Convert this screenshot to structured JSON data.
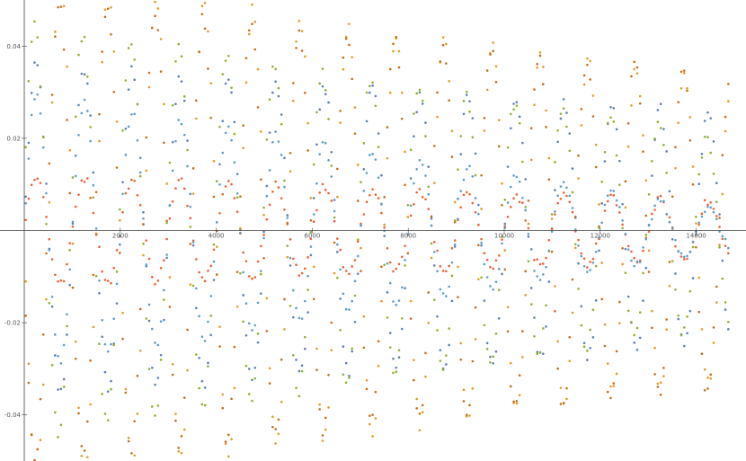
{
  "chart_data": {
    "type": "scatter",
    "title": "",
    "xlabel": "",
    "ylabel": "",
    "xlim": [
      0,
      14700
    ],
    "ylim": [
      -0.05,
      0.05
    ],
    "x_ticks": [
      {
        "value": 2000,
        "label": "2000"
      },
      {
        "value": 4000,
        "label": "4000"
      },
      {
        "value": 6000,
        "label": "6000"
      },
      {
        "value": 8000,
        "label": "8000"
      },
      {
        "value": 10000,
        "label": "10000"
      },
      {
        "value": 12000,
        "label": "12000"
      },
      {
        "value": 14000,
        "label": "14000"
      }
    ],
    "y_ticks": [
      {
        "value": 0.04,
        "label": "0.04"
      },
      {
        "value": 0.02,
        "label": "0.02"
      },
      {
        "value": -0.02,
        "label": "-0.02"
      },
      {
        "value": -0.04,
        "label": "-0.04"
      }
    ],
    "grid": false,
    "legend": "none",
    "series_points_per_series": 240,
    "series": [
      {
        "color": "#5E81B5",
        "amplitude_start": 0.036,
        "amplitude_end": 0.025,
        "period": 1000,
        "phase": 0.0,
        "noise": 0.0015
      },
      {
        "color": "#E19C24",
        "amplitude_start": 0.055,
        "amplitude_end": 0.032,
        "period": 1000,
        "phase": 3.14,
        "noise": 0.0015
      },
      {
        "color": "#8FB032",
        "amplitude_start": 0.045,
        "amplitude_end": 0.02,
        "period": 1000,
        "phase": 0.2,
        "noise": 0.0015
      },
      {
        "color": "#EB6235",
        "amplitude_start": 0.012,
        "amplitude_end": 0.006,
        "period": 1000,
        "phase": 0.0,
        "noise": 0.001
      },
      {
        "color": "#C56E1A",
        "amplitude_start": 0.05,
        "amplitude_end": 0.034,
        "period": 1000,
        "phase": 3.3,
        "noise": 0.0015
      },
      {
        "color": "#5D9EC7",
        "amplitude_start": 0.03,
        "amplitude_end": 0.004,
        "period": 1000,
        "phase": 0.0,
        "noise": 0.0008
      }
    ]
  }
}
